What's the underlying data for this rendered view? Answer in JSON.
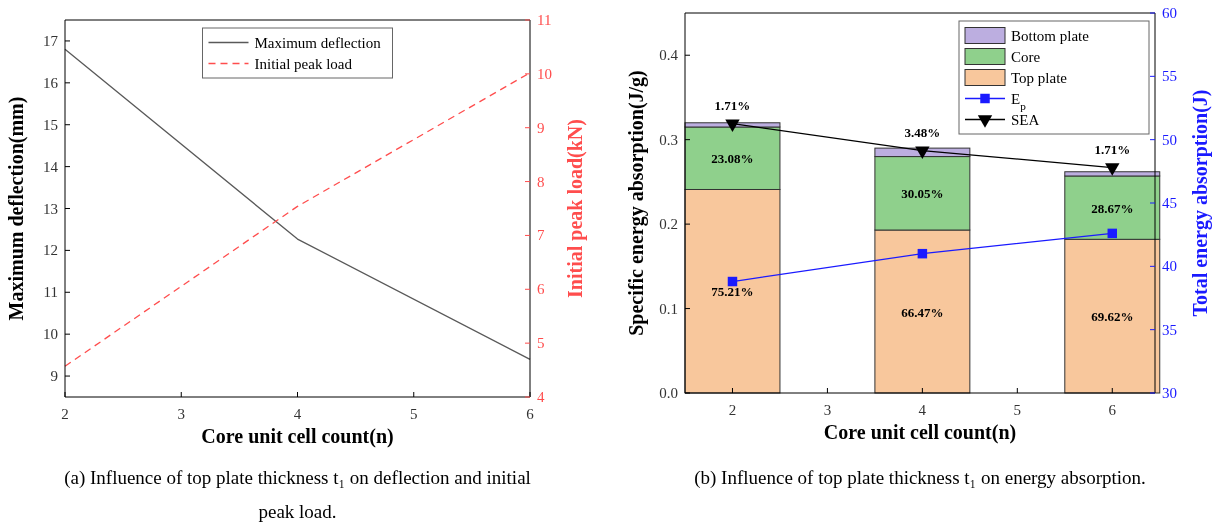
{
  "chart_data": [
    {
      "type": "line",
      "x": [
        2,
        4,
        6
      ],
      "xlim": [
        2,
        6
      ],
      "xticks": [
        2,
        3,
        4,
        5,
        6
      ],
      "ylim": [
        8.5,
        17.5
      ],
      "yticks": [
        9,
        10,
        11,
        12,
        13,
        14,
        15,
        16,
        17
      ],
      "y2lim": [
        4,
        11
      ],
      "y2ticks": [
        4,
        5,
        6,
        7,
        8,
        9,
        10,
        11
      ],
      "xlabel": "Core unit cell count(n)",
      "ylabel": "Maximum deflection(mm)",
      "y2label": "Initial peak load(kN)",
      "grid": false,
      "legend": "top",
      "series": [
        {
          "name": "Maximum deflection",
          "color": "#595959",
          "values": [
            16.8,
            12.27,
            9.4
          ],
          "line_style": "solid"
        },
        {
          "name": "Initial peak load",
          "color": "#ff4d4d",
          "values": [
            4.57,
            7.54,
            10.02
          ],
          "line_style": "dashed",
          "axis": "y2"
        }
      ],
      "annotations": [
        "(a) Influence of top plate thickness t₁ on deflection and initial peak load."
      ]
    },
    {
      "type": "bar",
      "stacked": true,
      "x": [
        2,
        4,
        6
      ],
      "xlim": [
        1.5,
        6.45
      ],
      "xticks": [
        2,
        3,
        4,
        5,
        6
      ],
      "ylim": [
        0,
        0.45
      ],
      "yticks": [
        {
          "value": 0,
          "label": "0.0"
        },
        0.1,
        0.2,
        0.3,
        0.4
      ],
      "y2lim": [
        30,
        60
      ],
      "y2ticks": [
        30,
        35,
        40,
        45,
        50,
        55,
        60
      ],
      "xlabel": "Core unit cell count(n)",
      "ylabel": "Specific energy absorption(J/g)",
      "y2label": "Total energy absorption(J)",
      "grid": false,
      "legend": "top right",
      "series": [
        {
          "name": "Top plate",
          "color": "#f8c79c",
          "values": [
            0.241,
            0.193,
            0.182
          ]
        },
        {
          "name": "Core",
          "color": "#8fd08c",
          "values": [
            0.074,
            0.087,
            0.075
          ]
        },
        {
          "name": "Bottom plate",
          "color": "#bcaee0",
          "values": [
            0.005,
            0.01,
            0.005
          ]
        },
        {
          "name": "E$_{p}$",
          "type": "line",
          "color": "#1a1aff",
          "values": [
            38.8,
            41.0,
            42.6
          ],
          "marker": "square",
          "axis": "y2"
        },
        {
          "name": "SEA",
          "type": "line",
          "color": "#000000",
          "values": [
            0.319,
            0.287,
            0.267
          ],
          "marker": "triangle"
        }
      ],
      "annotations": [
        "(b) Influence of top plate thickness t₁ on energy absorption.",
        "75.21%",
        "66.47%",
        "69.62%",
        "23.08%",
        "30.05%",
        "28.67%",
        "1.71%",
        "3.48%",
        "1.71%"
      ]
    }
  ]
}
